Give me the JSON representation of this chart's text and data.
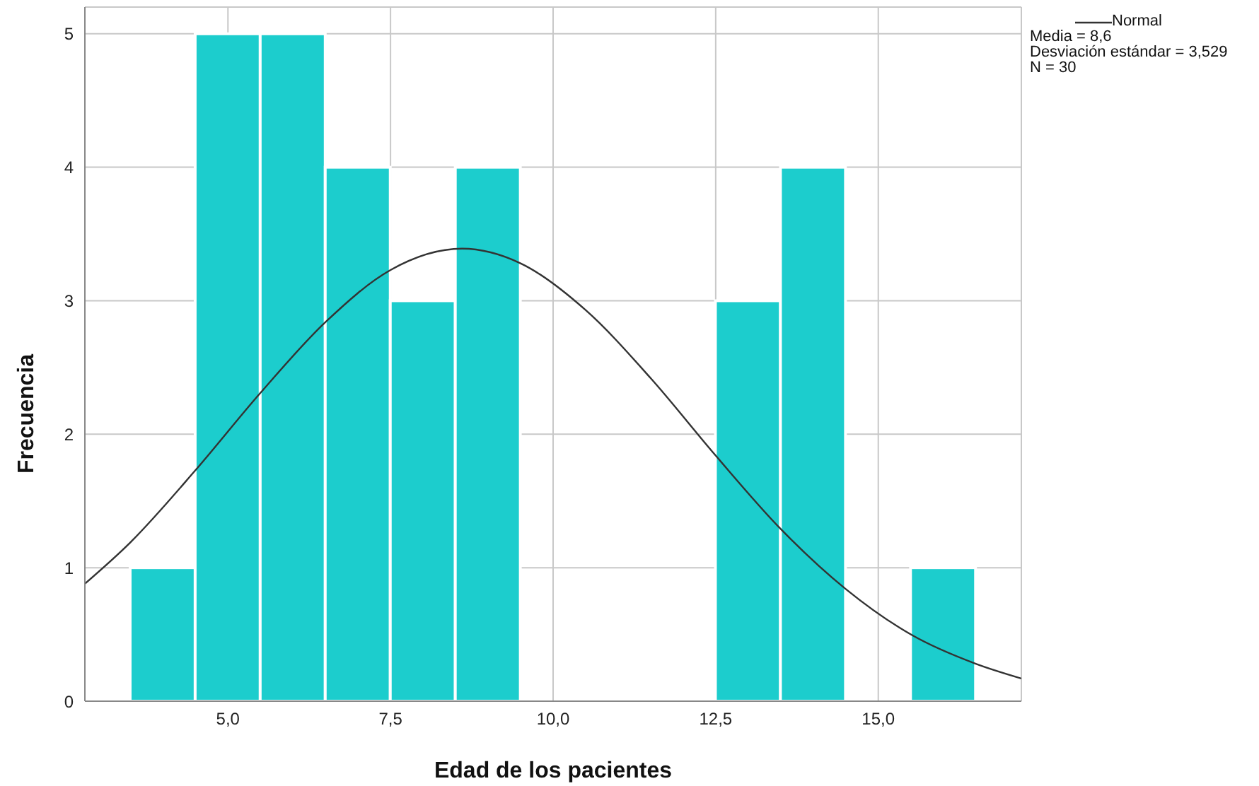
{
  "chart_data": {
    "type": "histogram",
    "xlabel": "Edad de los pacientes",
    "ylabel": "Frecuencia",
    "bins": [
      3.5,
      4.5,
      5.5,
      6.5,
      7.5,
      8.5,
      9.5,
      10.5,
      11.5,
      12.5,
      13.5,
      14.5,
      15.5,
      16.5
    ],
    "values": [
      1,
      5,
      5,
      4,
      3,
      4,
      0,
      0,
      0,
      3,
      4,
      0,
      1
    ],
    "color": "#1ccdcd",
    "series": [
      {
        "name": "Normal",
        "type": "line",
        "color": "#333333",
        "x": [
          2.8,
          3.5,
          4.5,
          5.5,
          6.5,
          7.5,
          8.6,
          9.5,
          10.5,
          11.5,
          12.5,
          13.5,
          14.5,
          15.5,
          16.5,
          17.2
        ],
        "values": [
          0.88,
          1.19,
          1.73,
          2.31,
          2.84,
          3.23,
          3.39,
          3.28,
          2.93,
          2.42,
          1.84,
          1.29,
          0.84,
          0.5,
          0.28,
          0.17
        ]
      }
    ],
    "annotations": [
      "Media = 8,6",
      "Desviación estándar = 3,529",
      "N = 30"
    ],
    "xlim": [
      2.8,
      17.2
    ],
    "xticks": [
      {
        "value": 5,
        "label": "5,0"
      },
      {
        "value": 7.5,
        "label": "7,5"
      },
      {
        "value": 10,
        "label": "10,0"
      },
      {
        "value": 12.5,
        "label": "12,5"
      },
      {
        "value": 15,
        "label": "15,0"
      }
    ],
    "ylim": [
      0,
      5.2
    ],
    "yticks": [
      0,
      1,
      2,
      3,
      4,
      5
    ],
    "grid": true,
    "legend": "top right",
    "marker": "none"
  }
}
